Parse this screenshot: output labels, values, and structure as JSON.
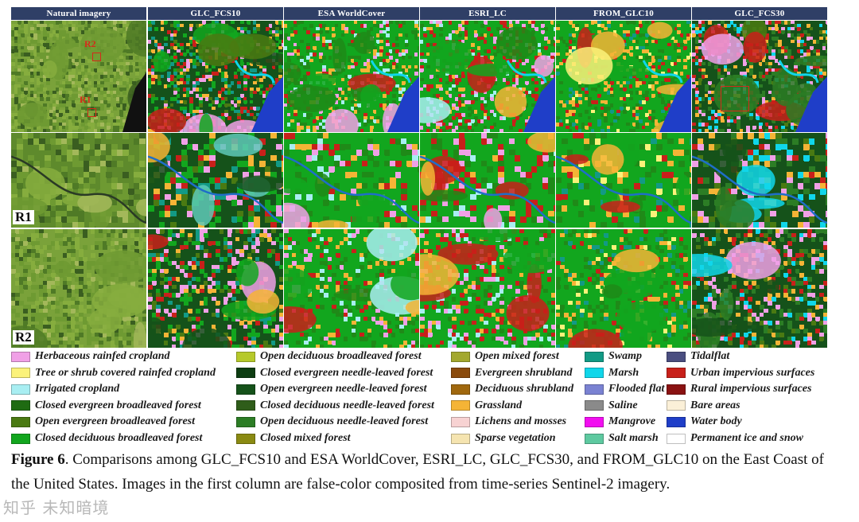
{
  "columns": [
    "Natural imagery",
    "GLC_FCS10",
    "ESA WorldCover",
    "ESRI_LC",
    "FROM_GLC10",
    "GLC_FCS30"
  ],
  "row_labels": [
    "R1",
    "R2"
  ],
  "overview_markers": [
    "R2",
    "R1"
  ],
  "legend": [
    {
      "label": "Herbaceous rainfed cropland",
      "color": "#f0a0e6"
    },
    {
      "label": "Tree or shrub covered rainfed cropland",
      "color": "#fbf27a"
    },
    {
      "label": "Irrigated cropland",
      "color": "#a8eef2"
    },
    {
      "label": "Closed evergreen broadleaved forest",
      "color": "#1f6b12"
    },
    {
      "label": "Open evergreen broadleaved forest",
      "color": "#4a7a12"
    },
    {
      "label": "Closed deciduous broadleaved forest",
      "color": "#12a61e"
    },
    {
      "label": "Open deciduous broadleaved forest",
      "color": "#b6c92a"
    },
    {
      "label": "Closed evergreen needle-leaved forest",
      "color": "#0d3d12"
    },
    {
      "label": "Open evergreen needle-leaved forest",
      "color": "#15521a"
    },
    {
      "label": "Closed deciduous needle-leaved forest",
      "color": "#2f5d1a"
    },
    {
      "label": "Open deciduous needle-leaved forest",
      "color": "#2c7d25"
    },
    {
      "label": "Closed mixed forest",
      "color": "#8a8a12"
    },
    {
      "label": "Open mixed forest",
      "color": "#a3a82e"
    },
    {
      "label": "Evergreen shrubland",
      "color": "#8a4a0c"
    },
    {
      "label": "Deciduous shrubland",
      "color": "#a0680e"
    },
    {
      "label": "Grassland",
      "color": "#f5b436"
    },
    {
      "label": "Lichens and mosses",
      "color": "#f7d2d2"
    },
    {
      "label": "Sparse vegetation",
      "color": "#f5e4b0"
    },
    {
      "label": "Swamp",
      "color": "#129a85"
    },
    {
      "label": "Marsh",
      "color": "#10d6ea"
    },
    {
      "label": "Flooded flat",
      "color": "#7a82d2"
    },
    {
      "label": "Saline",
      "color": "#8a8a8a"
    },
    {
      "label": "Mangrove",
      "color": "#f20ef0"
    },
    {
      "label": "Salt marsh",
      "color": "#5ec9a0"
    },
    {
      "label": "Tidalflat",
      "color": "#4a4e80"
    },
    {
      "label": "Urban impervious surfaces",
      "color": "#c8201a"
    },
    {
      "label": "Rural impervious surfaces",
      "color": "#8a1212"
    },
    {
      "label": "Bare areas",
      "color": "#fbf0d8"
    },
    {
      "label": "Water body",
      "color": "#1f3ec8"
    },
    {
      "label": "Permanent ice and snow",
      "color": "#ffffff"
    }
  ],
  "caption": {
    "label": "Figure 6",
    "text": ". Comparisons among GLC_FCS10 and ESA WorldCover, ESRI_LC, GLC_FCS30, and FROM_GLC10 on the East Coast of the United States. Images in the first column are false-color composited from time-series Sentinel-2 imagery."
  },
  "watermark": "知乎 未知暗境"
}
